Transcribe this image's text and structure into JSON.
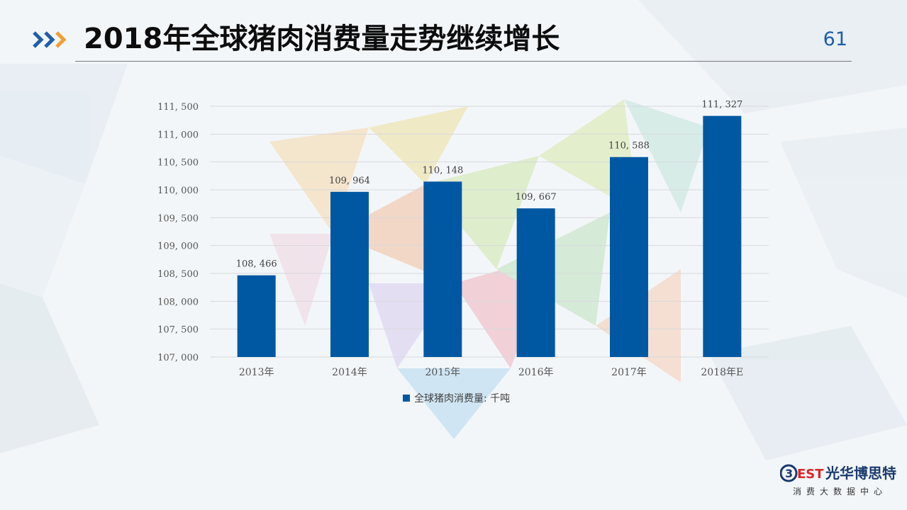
{
  "slide": {
    "title": "2018年全球猪肉消费量走势继续增长",
    "page_number": "61"
  },
  "colors": {
    "bar": "#0058a3",
    "title_text": "#0d0d0d",
    "page_number": "#1f5ea8",
    "chevron_blue": "#1f5ea8",
    "chevron_orange": "#f0a030"
  },
  "icons": {
    "title_marker": "triple-chevron-icon"
  },
  "chart_data": {
    "type": "bar",
    "categories": [
      "2013年",
      "2014年",
      "2015年",
      "2016年",
      "2017年",
      "2018年E"
    ],
    "series": [
      {
        "name": "全球猪肉消费量: 千吨",
        "values": [
          108466,
          109964,
          110148,
          109667,
          110588,
          111327
        ],
        "value_labels": [
          "108, 466",
          "109, 964",
          "110, 148",
          "109, 667",
          "110, 588",
          "111, 327"
        ]
      }
    ],
    "ylim": [
      107000,
      111500
    ],
    "y_ticks": [
      107000,
      107500,
      108000,
      108500,
      109000,
      109500,
      110000,
      110500,
      111000,
      111500
    ],
    "y_tick_labels": [
      "107, 000",
      "107, 500",
      "108, 000",
      "108, 500",
      "109, 000",
      "109, 500",
      "110, 000",
      "110, 500",
      "111, 000",
      "111, 500"
    ],
    "grid": true,
    "legend_position": "bottom"
  },
  "branding": {
    "logo_mark": "3EST",
    "logo_name": "光华博思特",
    "logo_subtitle": "消费大数据中心"
  }
}
